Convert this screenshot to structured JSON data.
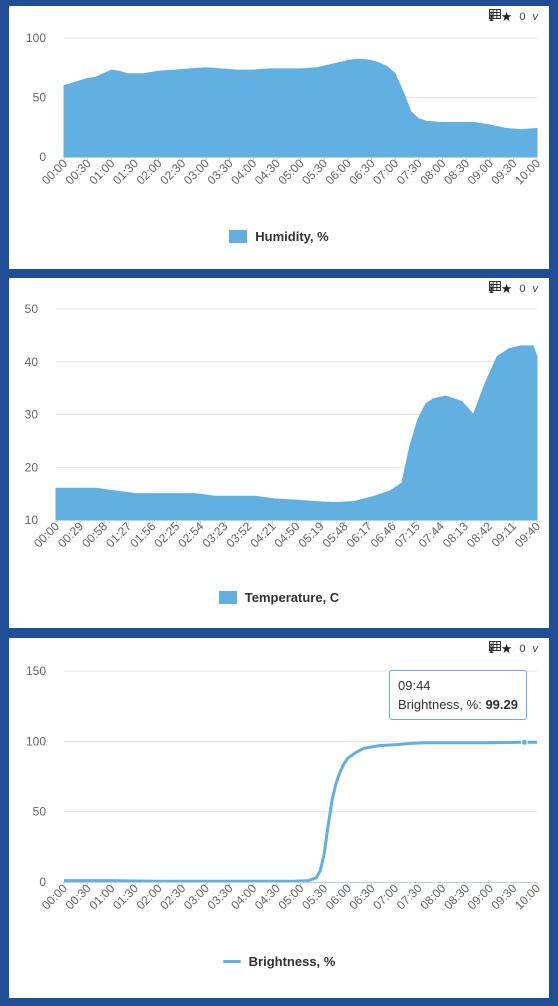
{
  "toolbar": {
    "info": "i",
    "star": "★",
    "count": "0",
    "version": "v"
  },
  "colors": {
    "series": "#62b0e1",
    "frame": "#1f4f96",
    "grid": "#e6e6e6",
    "text": "#666666"
  },
  "icons": [
    "info-icon",
    "star-icon",
    "table-icon"
  ],
  "chart_data": [
    {
      "type": "area",
      "legend": "Humidity, %",
      "ylim": [
        0,
        100
      ],
      "yticks": [
        0,
        50,
        100
      ],
      "xlim": [
        0,
        600
      ],
      "xtick_labels": [
        "00:00",
        "00:30",
        "01:00",
        "01:30",
        "02:00",
        "02:30",
        "03:00",
        "03:30",
        "04:00",
        "04:30",
        "05:00",
        "05:30",
        "06:00",
        "06:30",
        "07:00",
        "07:30",
        "08:00",
        "08:30",
        "09:00",
        "09:30",
        "10:00"
      ],
      "series": [
        {
          "x": [
            0,
            10,
            20,
            30,
            40,
            50,
            60,
            70,
            80,
            90,
            100,
            120,
            140,
            160,
            180,
            200,
            220,
            240,
            260,
            280,
            300,
            320,
            340,
            360,
            370,
            380,
            390,
            400,
            410,
            420,
            430,
            440,
            450,
            460,
            480,
            500,
            520,
            540,
            560,
            580,
            600
          ],
          "values": [
            60,
            62,
            64,
            66,
            67,
            70,
            73,
            72,
            70,
            70,
            70,
            72,
            73,
            74,
            75,
            74,
            73,
            73,
            74,
            74,
            74,
            75,
            78,
            81,
            82,
            82,
            81,
            79,
            76,
            70,
            55,
            38,
            32,
            30,
            29,
            29,
            29,
            27,
            24,
            23,
            24
          ]
        }
      ]
    },
    {
      "type": "area",
      "legend": "Temperature, C",
      "ylim": [
        10,
        50
      ],
      "yticks": [
        10,
        20,
        30,
        40,
        50
      ],
      "xlim": [
        0,
        605
      ],
      "xtick_labels": [
        "00:00",
        "00:29",
        "00:58",
        "01:27",
        "01:56",
        "02:25",
        "02:54",
        "03:23",
        "03:52",
        "04:21",
        "04:50",
        "05:19",
        "05:48",
        "06:17",
        "06:46",
        "07:15",
        "07:44",
        "08:13",
        "08:42",
        "09:11",
        "09:40"
      ],
      "series": [
        {
          "x": [
            0,
            25,
            50,
            75,
            100,
            125,
            150,
            175,
            200,
            225,
            250,
            275,
            300,
            325,
            350,
            375,
            400,
            420,
            435,
            445,
            455,
            465,
            475,
            490,
            510,
            525,
            540,
            555,
            570,
            585,
            600,
            605
          ],
          "values": [
            16,
            16,
            16,
            15.5,
            15,
            15,
            15,
            15,
            14.5,
            14.5,
            14.5,
            14,
            13.8,
            13.5,
            13.3,
            13.5,
            14.5,
            15.5,
            17,
            24,
            29,
            32,
            33,
            33.5,
            32.5,
            30,
            36,
            41,
            42.5,
            43,
            43,
            41
          ]
        }
      ]
    },
    {
      "type": "line",
      "legend": "Brightness, %",
      "ylim": [
        0,
        150
      ],
      "yticks": [
        0,
        50,
        100,
        150
      ],
      "xlim": [
        0,
        600
      ],
      "xtick_labels": [
        "00:00",
        "00:30",
        "01:00",
        "01:30",
        "02:00",
        "02:30",
        "03:00",
        "03:30",
        "04:00",
        "04:30",
        "05:00",
        "05:30",
        "06:00",
        "06:30",
        "07:00",
        "07:30",
        "08:00",
        "08:30",
        "09:00",
        "09:30",
        "10:00"
      ],
      "series": [
        {
          "x": [
            0,
            60,
            120,
            180,
            240,
            290,
            310,
            320,
            325,
            330,
            335,
            340,
            345,
            350,
            355,
            360,
            370,
            380,
            390,
            400,
            420,
            440,
            460,
            480,
            500,
            520,
            540,
            560,
            580,
            584,
            600
          ],
          "values": [
            1,
            1,
            0.5,
            0.5,
            0.5,
            0.5,
            1,
            3,
            8,
            20,
            40,
            58,
            70,
            78,
            84,
            88,
            92,
            95,
            96,
            97,
            97.5,
            98.5,
            99,
            99,
            99,
            99,
            99,
            99.2,
            99.3,
            99.29,
            99.3
          ]
        }
      ],
      "tooltip": {
        "time": "09:44",
        "label": "Brightness, %",
        "value": "99.29",
        "x": 584
      }
    }
  ]
}
